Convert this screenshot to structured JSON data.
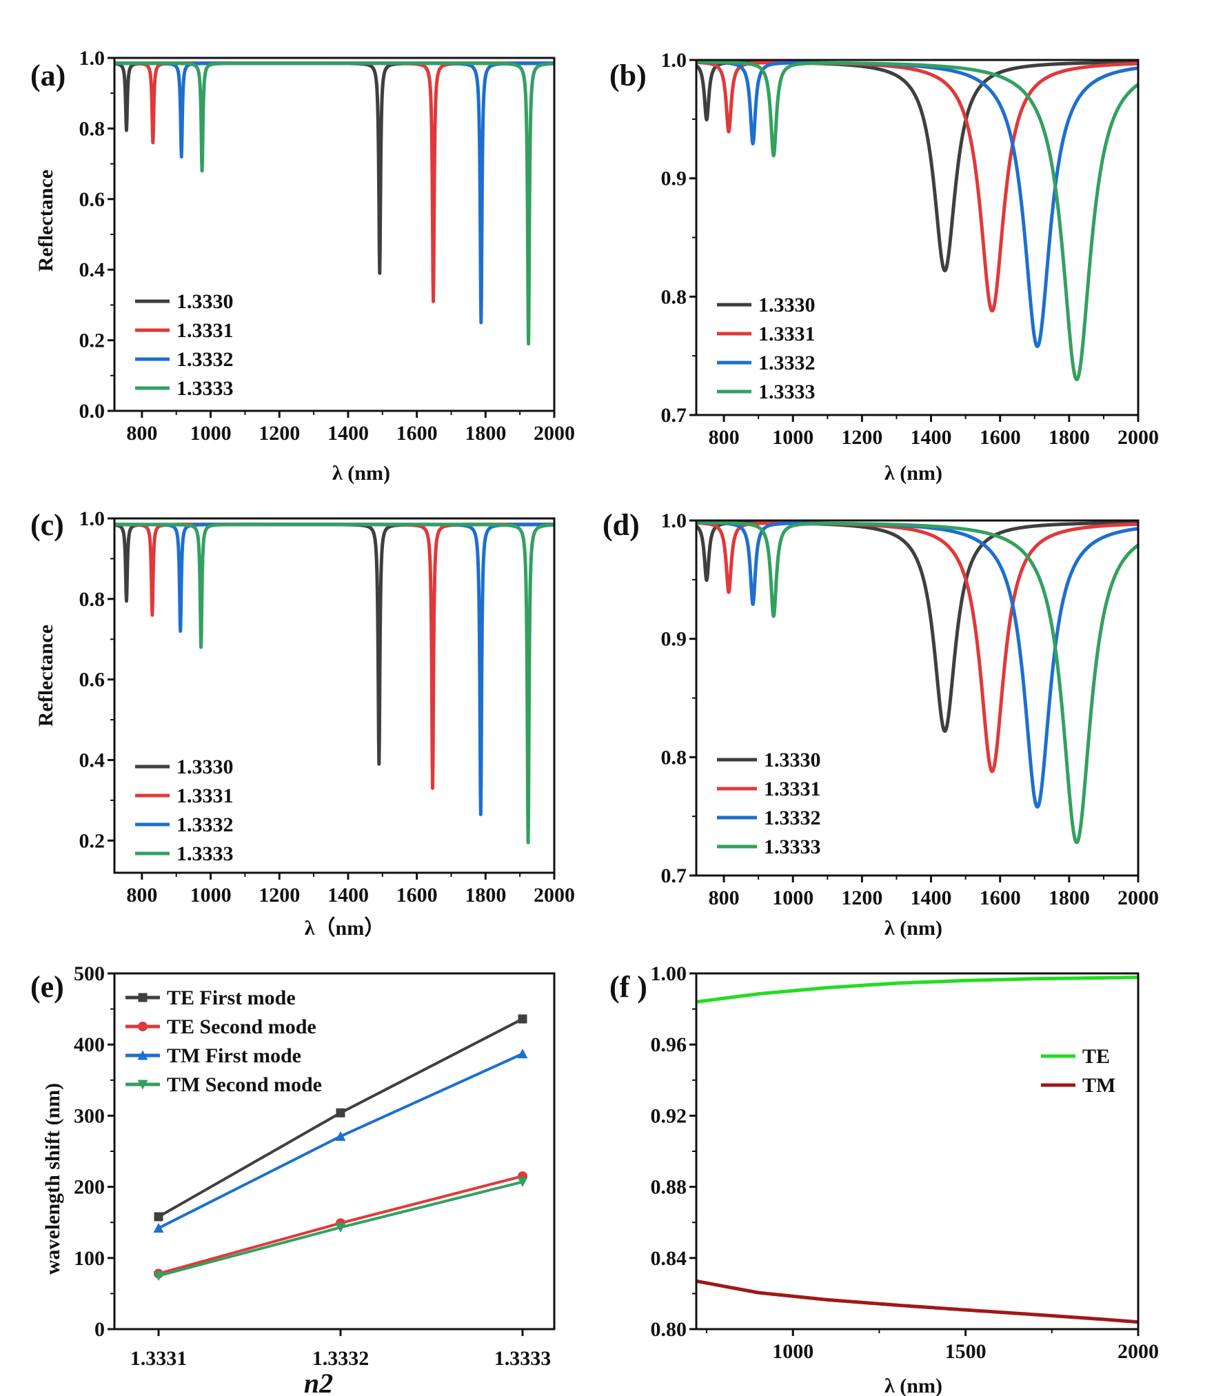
{
  "chart_data": [
    {
      "panel": "(a)",
      "type": "line",
      "title": "",
      "xlabel": "λ (nm)",
      "ylabel": "Reflectance",
      "xlim": [
        720,
        2000
      ],
      "ylim": [
        0.0,
        1.0
      ],
      "xticks": [
        "800",
        "1000",
        "1200",
        "1400",
        "1600",
        "1800",
        "2000"
      ],
      "yticks": [
        "0.0",
        "0.2",
        "0.4",
        "0.6",
        "0.8",
        "1.0"
      ],
      "legend_position": "bottom-left",
      "series": [
        {
          "name": "1.3330",
          "color": "#3f3f3f",
          "baseline": 0.985,
          "dips": [
            {
              "center": 755,
              "min": 0.795,
              "width": 3
            },
            {
              "center": 1492,
              "min": 0.39,
              "width": 3
            }
          ]
        },
        {
          "name": "1.3331",
          "color": "#e0393a",
          "baseline": 0.985,
          "dips": [
            {
              "center": 832,
              "min": 0.76,
              "width": 3
            },
            {
              "center": 1648,
              "min": 0.31,
              "width": 3
            }
          ]
        },
        {
          "name": "1.3332",
          "color": "#1d6fd0",
          "baseline": 0.985,
          "dips": [
            {
              "center": 915,
              "min": 0.72,
              "width": 3
            },
            {
              "center": 1787,
              "min": 0.25,
              "width": 3
            }
          ]
        },
        {
          "name": "1.3333",
          "color": "#33a060",
          "baseline": 0.985,
          "dips": [
            {
              "center": 975,
              "min": 0.68,
              "width": 3
            },
            {
              "center": 1925,
              "min": 0.19,
              "width": 3
            }
          ]
        }
      ]
    },
    {
      "panel": "(b)",
      "type": "line",
      "title": "",
      "xlabel": "λ (nm)",
      "ylabel": "",
      "xlim": [
        720,
        2000
      ],
      "ylim": [
        0.7,
        1.0
      ],
      "xticks": [
        "800",
        "1000",
        "1200",
        "1400",
        "1600",
        "1800",
        "2000"
      ],
      "yticks": [
        "0.7",
        "0.8",
        "0.9",
        "1.0"
      ],
      "legend_position": "bottom-left",
      "series": [
        {
          "name": "1.3330",
          "color": "#3f3f3f",
          "baseline": 0.999,
          "dips": [
            {
              "center": 750,
              "min": 0.95,
              "width": 8
            },
            {
              "center": 1440,
              "min": 0.822,
              "width": 38
            }
          ]
        },
        {
          "name": "1.3331",
          "color": "#e0393a",
          "baseline": 0.999,
          "dips": [
            {
              "center": 814,
              "min": 0.94,
              "width": 9
            },
            {
              "center": 1577,
              "min": 0.788,
              "width": 42
            }
          ]
        },
        {
          "name": "1.3332",
          "color": "#1d6fd0",
          "baseline": 0.999,
          "dips": [
            {
              "center": 884,
              "min": 0.93,
              "width": 9
            },
            {
              "center": 1708,
              "min": 0.758,
              "width": 46
            }
          ]
        },
        {
          "name": "1.3333",
          "color": "#33a060",
          "baseline": 0.999,
          "dips": [
            {
              "center": 944,
              "min": 0.92,
              "width": 10
            },
            {
              "center": 1822,
              "min": 0.73,
              "width": 50
            }
          ]
        }
      ]
    },
    {
      "panel": "(c)",
      "type": "line",
      "title": "",
      "xlabel": "λ（nm）",
      "ylabel": "Reflectance",
      "xlim": [
        720,
        2000
      ],
      "ylim": [
        0.12,
        1.0
      ],
      "xticks": [
        "800",
        "1000",
        "1200",
        "1400",
        "1600",
        "1800",
        "2000"
      ],
      "yticks": [
        "0.2",
        "0.4",
        "0.6",
        "0.8",
        "1.0"
      ],
      "legend_position": "bottom-left",
      "series": [
        {
          "name": "1.3330",
          "color": "#3f3f3f",
          "baseline": 0.985,
          "dips": [
            {
              "center": 755,
              "min": 0.795,
              "width": 3
            },
            {
              "center": 1490,
              "min": 0.39,
              "width": 3
            }
          ]
        },
        {
          "name": "1.3331",
          "color": "#e0393a",
          "baseline": 0.985,
          "dips": [
            {
              "center": 830,
              "min": 0.76,
              "width": 3
            },
            {
              "center": 1646,
              "min": 0.33,
              "width": 3
            }
          ]
        },
        {
          "name": "1.3332",
          "color": "#1d6fd0",
          "baseline": 0.985,
          "dips": [
            {
              "center": 912,
              "min": 0.72,
              "width": 3
            },
            {
              "center": 1786,
              "min": 0.265,
              "width": 3
            }
          ]
        },
        {
          "name": "1.3333",
          "color": "#33a060",
          "baseline": 0.985,
          "dips": [
            {
              "center": 972,
              "min": 0.68,
              "width": 3
            },
            {
              "center": 1924,
              "min": 0.195,
              "width": 3
            }
          ]
        }
      ]
    },
    {
      "panel": "(d)",
      "type": "line",
      "title": "",
      "xlabel": "λ (nm)",
      "ylabel": "",
      "xlim": [
        720,
        2000
      ],
      "ylim": [
        0.7,
        1.0
      ],
      "xticks": [
        "800",
        "1000",
        "1200",
        "1400",
        "1600",
        "1800",
        "2000"
      ],
      "yticks": [
        "0.7",
        "0.8",
        "0.9",
        "1.0"
      ],
      "legend_position": "bottom-left",
      "series": [
        {
          "name": "1.3330",
          "color": "#3f3f3f",
          "baseline": 0.999,
          "dips": [
            {
              "center": 750,
              "min": 0.95,
              "width": 8
            },
            {
              "center": 1440,
              "min": 0.822,
              "width": 38
            }
          ]
        },
        {
          "name": "1.3331",
          "color": "#e0393a",
          "baseline": 0.999,
          "dips": [
            {
              "center": 814,
              "min": 0.94,
              "width": 9
            },
            {
              "center": 1577,
              "min": 0.788,
              "width": 42
            }
          ]
        },
        {
          "name": "1.3332",
          "color": "#1d6fd0",
          "baseline": 0.999,
          "dips": [
            {
              "center": 884,
              "min": 0.93,
              "width": 9
            },
            {
              "center": 1708,
              "min": 0.758,
              "width": 46
            }
          ]
        },
        {
          "name": "1.3333",
          "color": "#33a060",
          "baseline": 0.999,
          "dips": [
            {
              "center": 944,
              "min": 0.92,
              "width": 10
            },
            {
              "center": 1822,
              "min": 0.728,
              "width": 50
            }
          ]
        }
      ]
    },
    {
      "panel": "(e)",
      "type": "line",
      "title": "",
      "xlabel": "n2",
      "ylabel": "wavelength shift (nm)",
      "categories": [
        "1.3331",
        "1.3332",
        "1.3333"
      ],
      "ylim": [
        0,
        500
      ],
      "yticks": [
        "0",
        "100",
        "200",
        "300",
        "400",
        "500"
      ],
      "legend_position": "top-left",
      "series": [
        {
          "name": "TE First  mode",
          "color": "#3f3f3f",
          "marker": "square",
          "values": [
            158,
            304,
            436
          ]
        },
        {
          "name": "TE Second mode",
          "color": "#e0393a",
          "marker": "circle",
          "values": [
            78,
            149,
            215
          ]
        },
        {
          "name": "TM First  mode",
          "color": "#1d6fd0",
          "marker": "triangle-up",
          "values": [
            142,
            271,
            387
          ]
        },
        {
          "name": "TM Second mode",
          "color": "#33a060",
          "marker": "triangle-down",
          "values": [
            75,
            143,
            207
          ]
        }
      ]
    },
    {
      "panel": "(f )",
      "type": "line",
      "title": "",
      "xlabel": "λ (nm)",
      "ylabel": "",
      "xlim": [
        720,
        2000
      ],
      "ylim": [
        0.8,
        1.0
      ],
      "xticks": [
        "1000",
        "1500",
        "2000"
      ],
      "yticks": [
        "0.80",
        "0.84",
        "0.88",
        "0.92",
        "0.96",
        "1.00"
      ],
      "legend_position": "right",
      "series": [
        {
          "name": "TE",
          "color": "#22dd22",
          "x": [
            720,
            900,
            1100,
            1300,
            1500,
            1700,
            1900,
            2000
          ],
          "y": [
            0.984,
            0.9885,
            0.992,
            0.9945,
            0.996,
            0.997,
            0.9975,
            0.9978
          ]
        },
        {
          "name": "TM",
          "color": "#a01818",
          "x": [
            720,
            900,
            1100,
            1300,
            1500,
            1700,
            1900,
            2000
          ],
          "y": [
            0.827,
            0.8205,
            0.8165,
            0.8135,
            0.8108,
            0.8082,
            0.8055,
            0.804
          ]
        }
      ]
    }
  ]
}
